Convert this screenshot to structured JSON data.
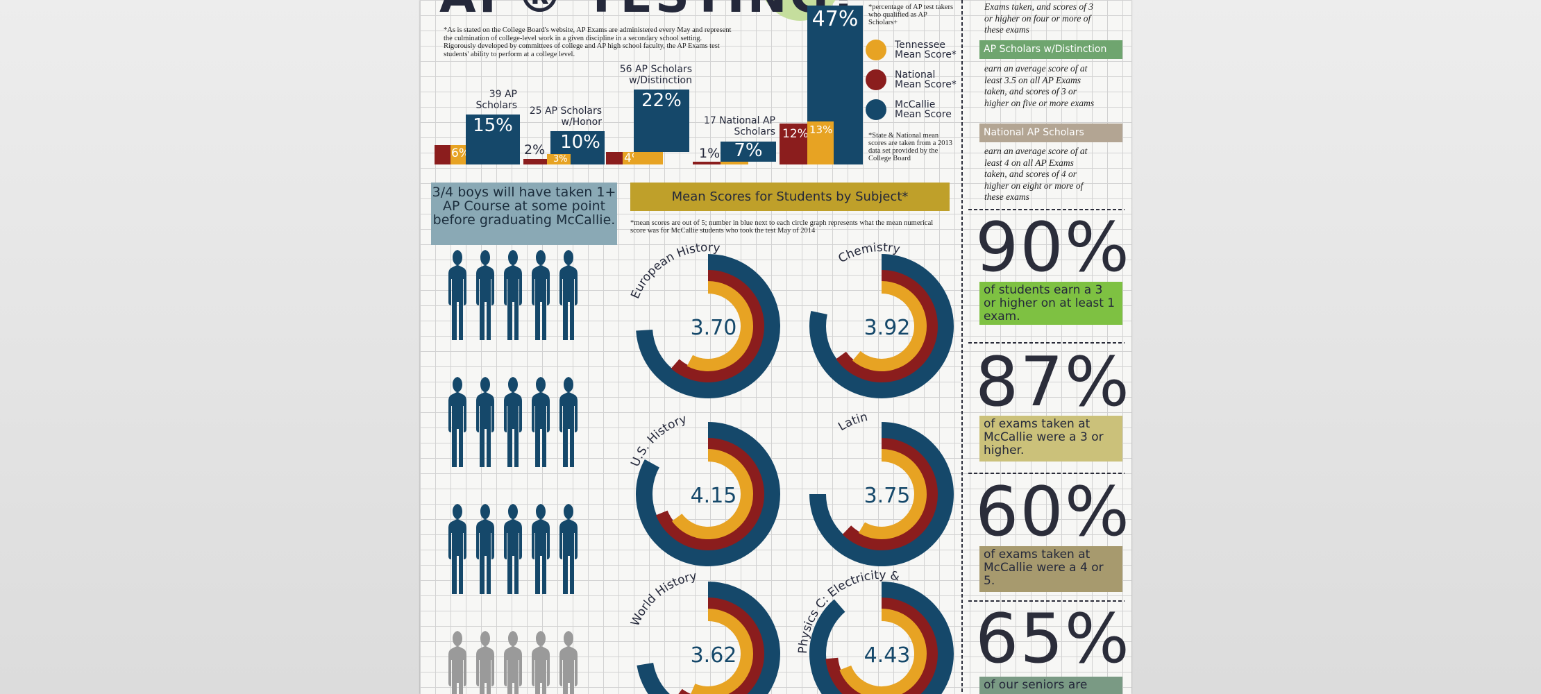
{
  "title": "AP® TESTING?",
  "intro": "*As is stated on the College Board's website, AP Exams are administered every May and represent the culmination of college-level work in a given discipline in a secondary school setting. Rigorously developed by committees of college and AP high school faculty, the AP Exams test students' ability to perform at a college level.",
  "legend": {
    "note": "*percentage of AP test takers who qualified as AP Scholars+",
    "items": [
      {
        "label": "Tennessee Mean Score*",
        "color": "#e7a323"
      },
      {
        "label": "National Mean Score*",
        "color": "#8b1d1d"
      },
      {
        "label": "McCallie Mean Score",
        "color": "#15486a"
      }
    ],
    "footnote": "*State & National mean scores are taken from a 2013 data set provided by the College Board"
  },
  "scholars": {
    "groups": [
      {
        "caption": "39 AP Scholars",
        "mccallie": 15,
        "national": 6,
        "tennessee": null,
        "mc_label": "15%",
        "red_label": "6%",
        "gold_label": ""
      },
      {
        "caption": "25 AP Scholars w/Honor",
        "mccallie": 10,
        "national": 2,
        "tennessee": 3,
        "mc_label": "10%",
        "red_label": "2%",
        "gold_label": "3%"
      },
      {
        "caption": "56 AP Scholars w/Distinction",
        "mccallie": 22,
        "national": 4,
        "tennessee": null,
        "mc_label": "22%",
        "red_label": "4%",
        "gold_label": ""
      },
      {
        "caption": "17 National AP Scholars",
        "mccallie": 7,
        "national": 1,
        "tennessee": null,
        "mc_label": "7%",
        "red_label": "1%",
        "gold_label": ""
      },
      {
        "caption": "",
        "mccallie": 47,
        "national": 12,
        "tennessee": 13,
        "mc_label": "47%",
        "red_label": "12%",
        "gold_label": "13%"
      }
    ]
  },
  "boys": {
    "text": "3/4 boys will have taken 1+ AP Course at some point before graduating McCallie.",
    "blue_color": "#15486a",
    "gray_color": "#9a9a9a"
  },
  "mean_scores": {
    "title": "Mean Scores for Students by Subject*",
    "note": "*mean scores are out of 5; number in blue next to each circle graph represents what the mean numerical score was for McCallie students who took the test May of 2014",
    "subjects": [
      {
        "name": "European History",
        "score": "3.70"
      },
      {
        "name": "Chemistry",
        "score": "3.92"
      },
      {
        "name": "U.S. History",
        "score": "4.15"
      },
      {
        "name": "Latin",
        "score": "3.75"
      },
      {
        "name": "World History",
        "score": "3.62"
      },
      {
        "name": "Physics C: Electricity & Magnetism",
        "score": "4.43"
      }
    ]
  },
  "sidebar": {
    "top_text": "Exams taken, and scores of 3 or higher on four or more of these exams",
    "distinction": {
      "label": "AP Scholars w/Distinction",
      "color": "#6fa56f",
      "text": "earn an average score of at least 3.5 on all AP Exams taken, and scores of 3 or higher on five or more exams"
    },
    "national": {
      "label": "National AP Scholars",
      "color": "#b3a593",
      "text": "earn an average score of at least 4 on all AP Exams taken, and scores of 4 or higher on eight or more of these exams"
    },
    "stats": [
      {
        "value": "90%",
        "text": "of students earn a 3 or higher on at least 1 exam.",
        "color": "#7ec142"
      },
      {
        "value": "87%",
        "text": "of exams taken at McCallie were a 3 or higher.",
        "color": "#cbc17a"
      },
      {
        "value": "60%",
        "text": "of exams taken at McCallie were a 4 or 5.",
        "color": "#a79a6e"
      },
      {
        "value": "65%",
        "text": "of our seniors are",
        "color": "#7a9a84"
      }
    ]
  }
}
